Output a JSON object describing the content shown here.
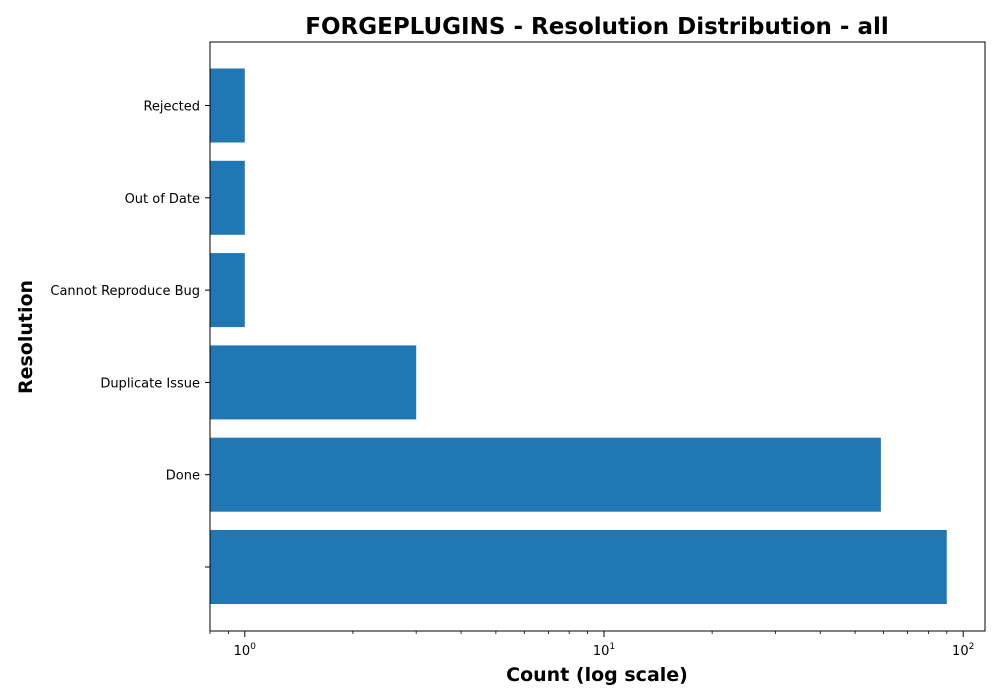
{
  "chart_data": {
    "type": "bar",
    "orientation": "horizontal",
    "title": "FORGEPLUGINS - Resolution Distribution - all",
    "xlabel": "Count (log scale)",
    "ylabel": "Resolution",
    "xscale": "log",
    "xlim": [
      0.8,
      115
    ],
    "x_ticks": [
      {
        "value": 1,
        "base": "10",
        "exp": "0"
      },
      {
        "value": 10,
        "base": "10",
        "exp": "1"
      },
      {
        "value": 100,
        "base": "10",
        "exp": "2"
      }
    ],
    "categories": [
      "",
      "Done",
      "Duplicate Issue",
      "Cannot Reproduce Bug",
      "Out of Date",
      "Rejected"
    ],
    "values": [
      90,
      59,
      3,
      1,
      1,
      1
    ],
    "grid": false,
    "colors": {
      "bar": "#1f77b4",
      "axes": "#000000",
      "background": "#ffffff"
    }
  }
}
